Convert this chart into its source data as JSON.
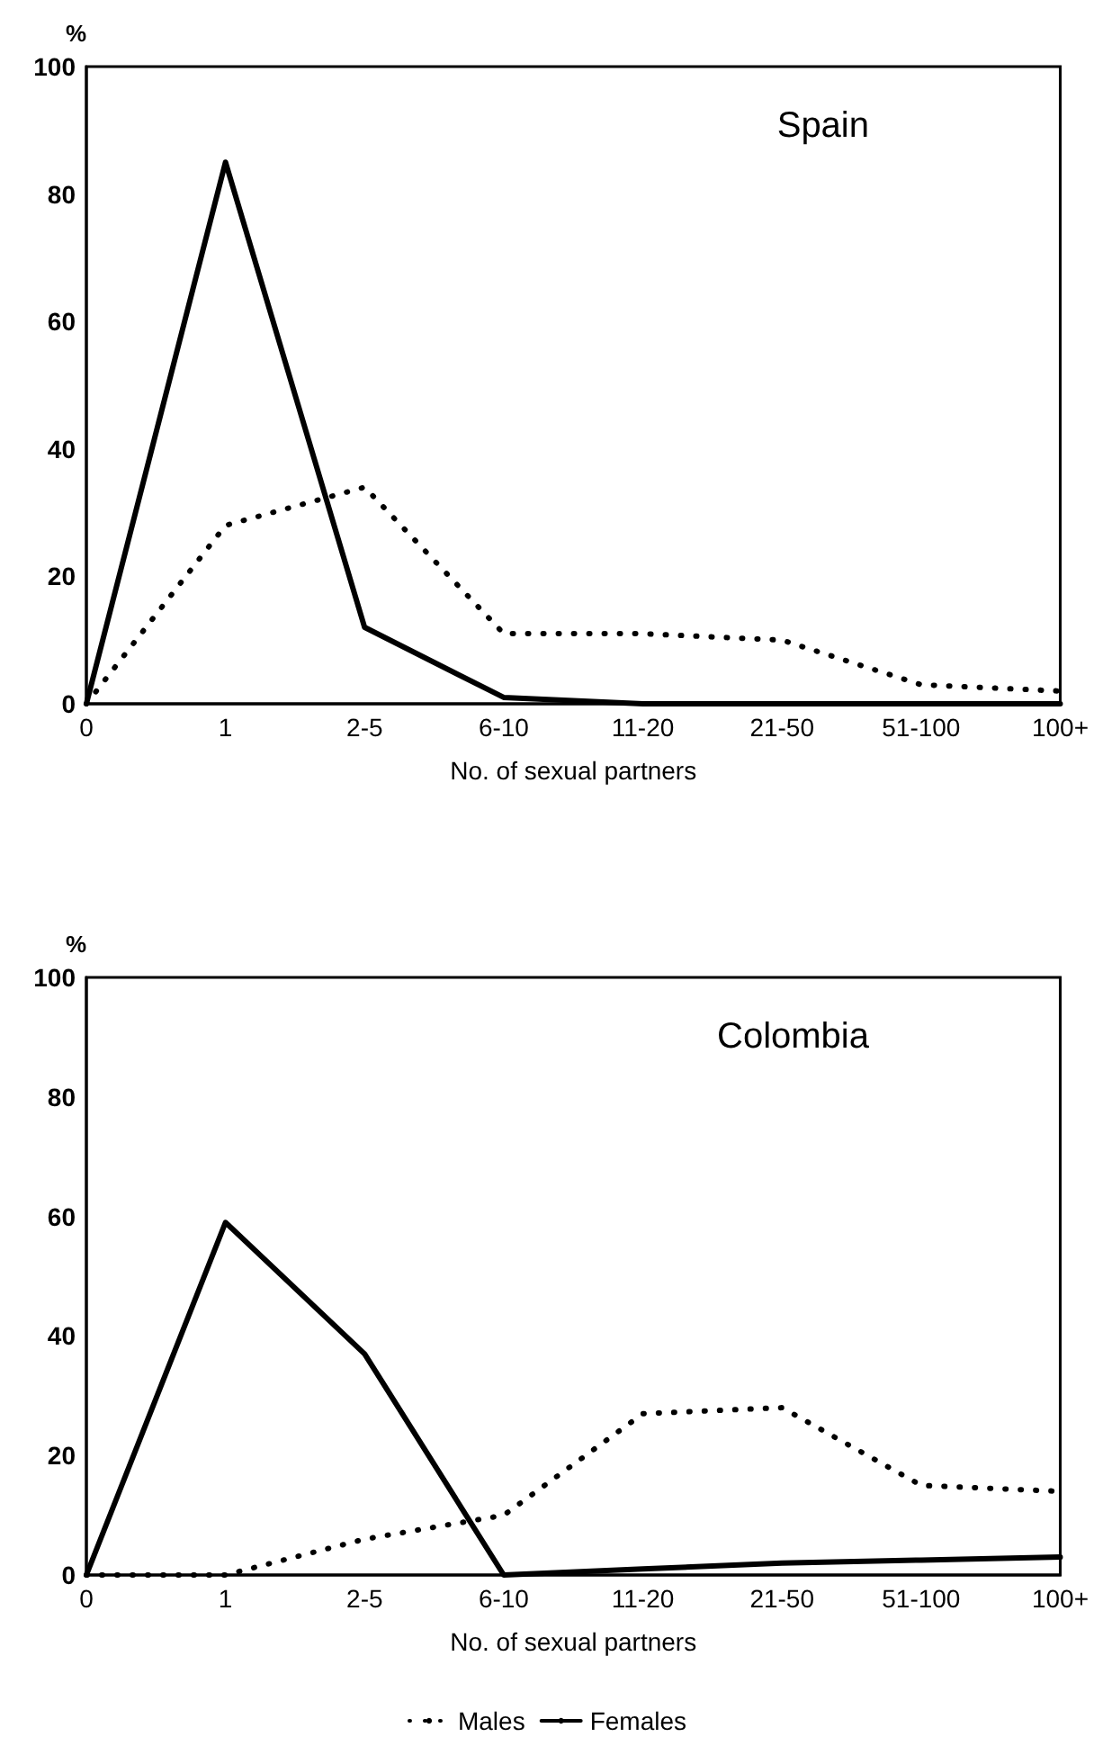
{
  "chart_data": [
    {
      "type": "line",
      "title": "Spain",
      "xlabel": "No. of sexual partners",
      "ylabel": "%",
      "categories": [
        "0",
        "1",
        "2-5",
        "6-10",
        "11-20",
        "21-50",
        "51-100",
        "100+"
      ],
      "ylim": [
        0,
        100
      ],
      "yticks": [
        0,
        20,
        40,
        60,
        80,
        100
      ],
      "legend": false,
      "series": [
        {
          "color": "#000000",
          "line_style": "dotted",
          "values": [
            0,
            28,
            34,
            11,
            11,
            10,
            3,
            2
          ]
        },
        {
          "color": "#000000",
          "line_style": "solid",
          "values": [
            0,
            85,
            12,
            1,
            0,
            0,
            0,
            0
          ]
        }
      ]
    },
    {
      "type": "line",
      "title": "Colombia",
      "xlabel": "No. of sexual partners",
      "ylabel": "%",
      "categories": [
        "0",
        "1",
        "2-5",
        "6-10",
        "11-20",
        "21-50",
        "51-100",
        "100+"
      ],
      "ylim": [
        0,
        100
      ],
      "yticks": [
        0,
        20,
        40,
        60,
        80,
        100
      ],
      "legend": "bottom",
      "series": [
        {
          "name": "Males",
          "color": "#000000",
          "line_style": "dotted",
          "values": [
            0,
            0,
            6,
            10,
            27,
            28,
            15,
            14
          ]
        },
        {
          "name": "Females",
          "color": "#000000",
          "line_style": "solid",
          "values": [
            0,
            59,
            37,
            0,
            1,
            2,
            2.5,
            3
          ]
        }
      ]
    }
  ]
}
